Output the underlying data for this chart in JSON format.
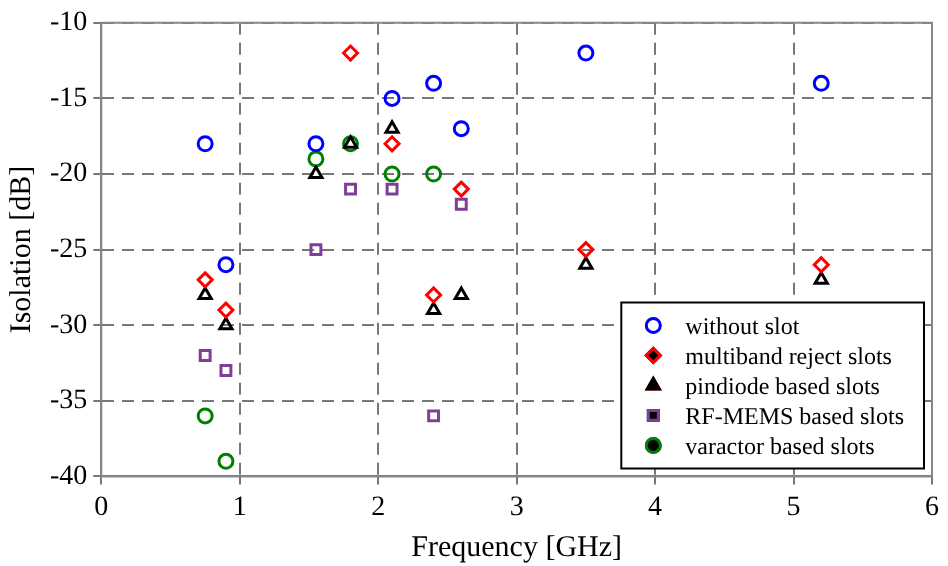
{
  "chart_data": {
    "type": "scatter",
    "xlabel": "Frequency [GHz]",
    "ylabel": "Isolation [dB]",
    "xlim": [
      0,
      6
    ],
    "xticks": [
      0,
      1,
      2,
      3,
      4,
      5,
      6
    ],
    "ylim": [
      -40,
      -10
    ],
    "yticks": [
      -40,
      -35,
      -30,
      -25,
      -20,
      -15,
      -10
    ],
    "grid": true,
    "legend": "bottom right",
    "line_style": "dashed",
    "series": [
      {
        "name": "without slot",
        "color": "#0000ff",
        "marker": "circle",
        "x": [
          0.75,
          0.9,
          1.55,
          2.1,
          2.4,
          2.6,
          3.5,
          5.2
        ],
        "values": [
          -18,
          -26,
          -18,
          -15,
          -14,
          -17,
          -12,
          -14
        ]
      },
      {
        "name": "multiband reject slots",
        "color": "#ff0000",
        "marker": "diamond",
        "x": [
          0.75,
          0.9,
          1.8,
          2.1,
          2.4,
          2.6,
          3.5,
          5.2
        ],
        "values": [
          -27,
          -29,
          -12,
          -18,
          -28,
          -21,
          -25,
          -26
        ]
      },
      {
        "name": "pindiode based slots",
        "color": "#000000",
        "marker": "triangle",
        "x": [
          0.75,
          0.9,
          1.55,
          1.8,
          2.1,
          2.4,
          2.6,
          3.5,
          5.2
        ],
        "values": [
          -28,
          -30,
          -20,
          -18,
          -17,
          -29,
          -28,
          -26,
          -27
        ]
      },
      {
        "name": "RF-MEMS based slots",
        "color": "#7f3f98",
        "marker": "square",
        "x": [
          0.75,
          0.9,
          1.55,
          1.8,
          2.1,
          2.4,
          2.6
        ],
        "values": [
          -32,
          -33,
          -25,
          -21,
          -21,
          -36,
          -22
        ]
      },
      {
        "name": "varactor based slots",
        "color": "#008000",
        "marker": "circle",
        "x": [
          0.75,
          0.9,
          1.55,
          1.8,
          2.1,
          2.4
        ],
        "values": [
          -36,
          -39,
          -19,
          -18,
          -20,
          -20
        ]
      }
    ]
  }
}
